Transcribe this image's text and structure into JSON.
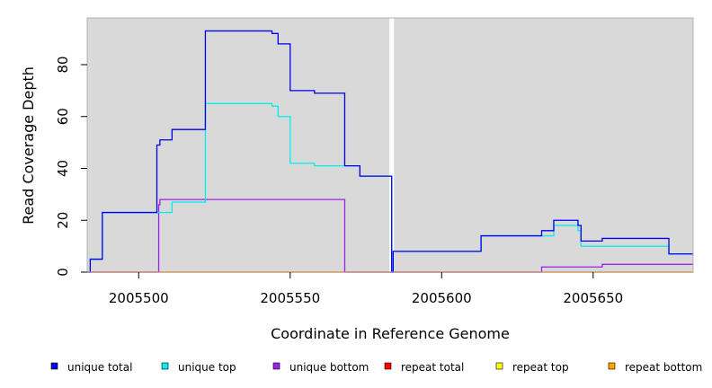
{
  "chart_data": {
    "type": "line",
    "xlabel": "Coordinate in Reference Genome",
    "ylabel": "Read Coverage Depth",
    "xlim": [
      2005483,
      2005683
    ],
    "ylim": [
      0,
      98
    ],
    "x_ticks": [
      2005500,
      2005550,
      2005600,
      2005650
    ],
    "x_tick_labels": [
      "2005500",
      "2005550",
      "2005600",
      "2005650"
    ],
    "y_ticks": [
      0,
      20,
      40,
      60,
      80
    ],
    "y_tick_labels": [
      "0",
      "20",
      "40",
      "60",
      "80"
    ],
    "background": "#d9d9d9",
    "gap_marker_x": 2005583.5,
    "legend_position": "bottom",
    "series": [
      {
        "name": "unique total",
        "color": "#0000ee",
        "points": [
          [
            2005483,
            0
          ],
          [
            2005484,
            5
          ],
          [
            2005488,
            23
          ],
          [
            2005506,
            49
          ],
          [
            2005507,
            51
          ],
          [
            2005511,
            55
          ],
          [
            2005522,
            93
          ],
          [
            2005544,
            92
          ],
          [
            2005546,
            88
          ],
          [
            2005550,
            70
          ],
          [
            2005558,
            69
          ],
          [
            2005568,
            41
          ],
          [
            2005573,
            37
          ],
          [
            2005583.5,
            0
          ],
          [
            2005584,
            8
          ],
          [
            2005613,
            14
          ],
          [
            2005633,
            16
          ],
          [
            2005637,
            20
          ],
          [
            2005645,
            18
          ],
          [
            2005646,
            12
          ],
          [
            2005653,
            13
          ],
          [
            2005675,
            7
          ],
          [
            2005683,
            7
          ]
        ]
      },
      {
        "name": "unique top",
        "color": "#00eeee",
        "points": [
          [
            2005483,
            0
          ],
          [
            2005484,
            5
          ],
          [
            2005488,
            23
          ],
          [
            2005506,
            23
          ],
          [
            2005511,
            27
          ],
          [
            2005522,
            65
          ],
          [
            2005544,
            64
          ],
          [
            2005546,
            60
          ],
          [
            2005550,
            42
          ],
          [
            2005558,
            41
          ],
          [
            2005568,
            41
          ],
          [
            2005573,
            37
          ],
          [
            2005583.5,
            0
          ],
          [
            2005584,
            8
          ],
          [
            2005613,
            14
          ],
          [
            2005633,
            14
          ],
          [
            2005637,
            18
          ],
          [
            2005645,
            16
          ],
          [
            2005646,
            10
          ],
          [
            2005653,
            10
          ],
          [
            2005675,
            7
          ],
          [
            2005683,
            7
          ]
        ]
      },
      {
        "name": "unique bottom",
        "color": "#a020f0",
        "points": [
          [
            2005483,
            0
          ],
          [
            2005506,
            0
          ],
          [
            2005506.6,
            26
          ],
          [
            2005507,
            28
          ],
          [
            2005568,
            0
          ],
          [
            2005633,
            2
          ],
          [
            2005653,
            3
          ],
          [
            2005683,
            3
          ]
        ]
      },
      {
        "name": "repeat total",
        "color": "#ff0000",
        "points": [
          [
            2005483,
            0
          ],
          [
            2005683,
            0
          ]
        ]
      },
      {
        "name": "repeat top",
        "color": "#ffff00",
        "points": [
          [
            2005483,
            0
          ],
          [
            2005683,
            0
          ]
        ]
      },
      {
        "name": "repeat bottom",
        "color": "#ffa500",
        "points": [
          [
            2005483,
            0
          ],
          [
            2005683,
            0
          ]
        ]
      }
    ]
  }
}
